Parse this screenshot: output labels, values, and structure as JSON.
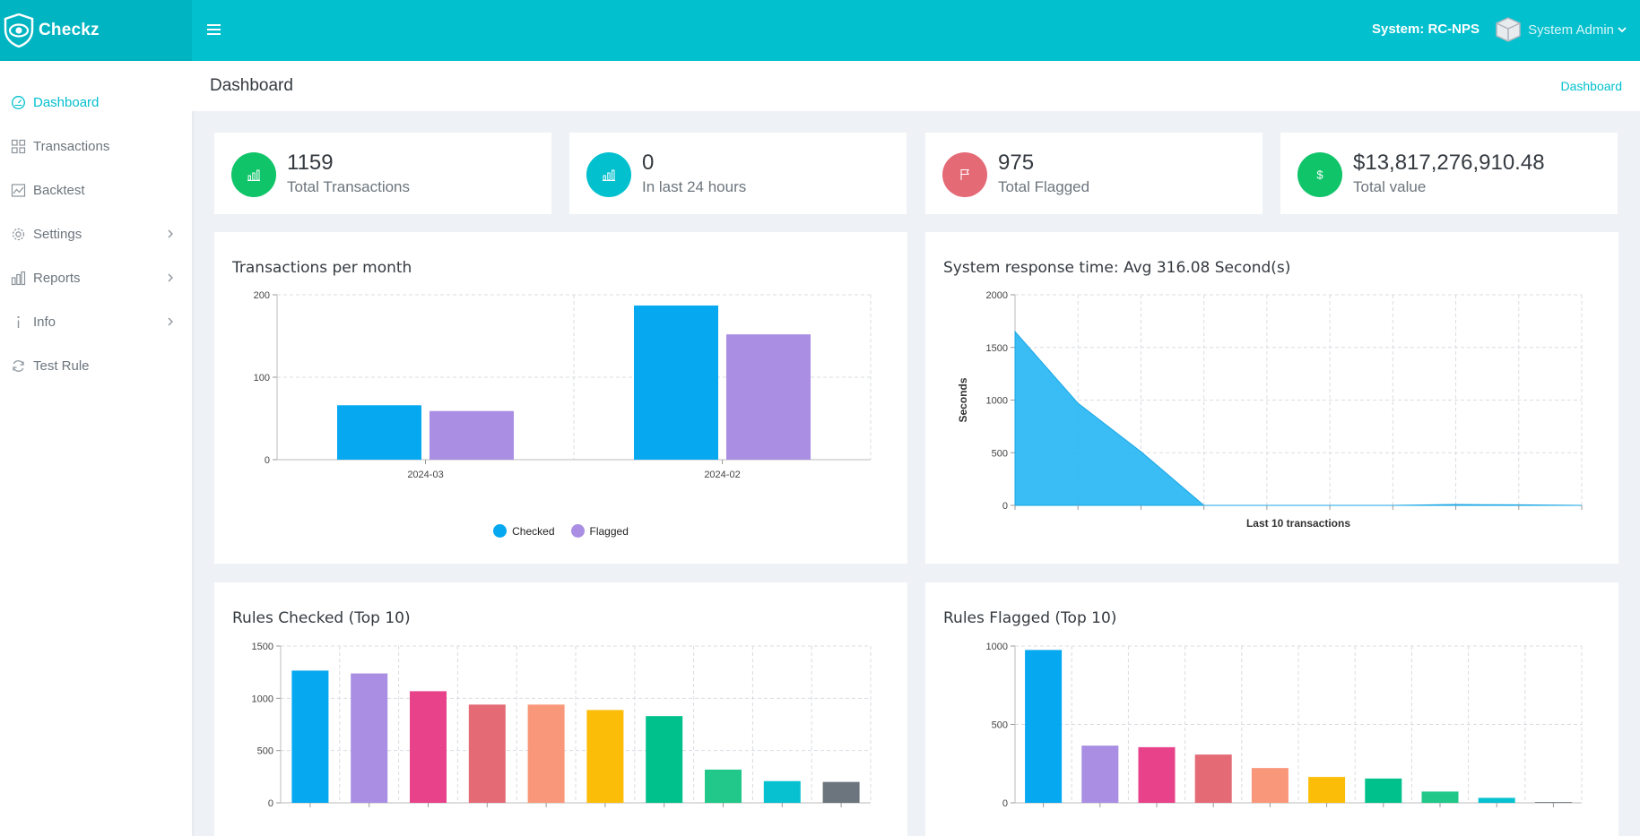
{
  "app": {
    "name": "Checkz"
  },
  "topbar": {
    "system_label": "System: RC-NPS",
    "user_name": "System Admin"
  },
  "sidebar": {
    "items": [
      {
        "label": "Dashboard",
        "icon": "gauge-icon",
        "active": true,
        "has_children": false
      },
      {
        "label": "Transactions",
        "icon": "grid-icon",
        "active": false,
        "has_children": false
      },
      {
        "label": "Backtest",
        "icon": "image-chart-icon",
        "active": false,
        "has_children": false
      },
      {
        "label": "Settings",
        "icon": "gear-icon",
        "active": false,
        "has_children": true
      },
      {
        "label": "Reports",
        "icon": "bar-chart-icon",
        "active": false,
        "has_children": true
      },
      {
        "label": "Info",
        "icon": "info-icon",
        "active": false,
        "has_children": true
      },
      {
        "label": "Test Rule",
        "icon": "refresh-icon",
        "active": false,
        "has_children": false
      }
    ]
  },
  "page": {
    "title": "Dashboard",
    "breadcrumb": "Dashboard"
  },
  "stats": [
    {
      "value": "1159",
      "label": "Total Transactions",
      "color": "#10c469",
      "icon": "bar-chart-icon"
    },
    {
      "value": "0",
      "label": "In last 24 hours",
      "color": "#02c0ce",
      "icon": "bar-chart-icon"
    },
    {
      "value": "975",
      "label": "Total Flagged",
      "color": "#e46a76",
      "icon": "flag-icon"
    },
    {
      "value": "$13,817,276,910.48",
      "label": "Total value",
      "color": "#10c469",
      "icon": "dollar-icon"
    }
  ],
  "charts": {
    "per_month_title": "Transactions per month",
    "response_title": "System response time: Avg 316.08 Second(s)",
    "rules_checked_title": "Rules Checked (Top 10)",
    "rules_flagged_title": "Rules Flagged (Top 10)"
  },
  "chart_data": [
    {
      "type": "bar",
      "title": "Transactions per month",
      "categories": [
        "2024-03",
        "2024-02"
      ],
      "series": [
        {
          "name": "Checked",
          "color": "#06a8f0",
          "values": [
            66,
            187
          ]
        },
        {
          "name": "Flagged",
          "color": "#a98ee3",
          "values": [
            59,
            152
          ]
        }
      ],
      "ylim": [
        0,
        200
      ],
      "yticks": [
        0,
        100,
        200
      ],
      "legend": "bottom",
      "grid": true
    },
    {
      "type": "area",
      "title": "System response time: Avg 316.08 Second(s)",
      "xlabel": "Last 10 transactions",
      "ylabel": "Seconds",
      "x": [
        1,
        2,
        3,
        4,
        5,
        6,
        7,
        8,
        9,
        10
      ],
      "values": [
        1650,
        970,
        510,
        0,
        0,
        0,
        0,
        8,
        5,
        0
      ],
      "color": "#1eb4f2",
      "ylim": [
        0,
        2000
      ],
      "yticks": [
        0,
        500,
        1000,
        1500,
        2000
      ],
      "grid": true
    },
    {
      "type": "bar",
      "title": "Rules Checked (Top 10)",
      "values": [
        1265,
        1238,
        1068,
        940,
        940,
        888,
        830,
        318,
        208,
        200
      ],
      "colors": [
        "#06a8f0",
        "#a98ee3",
        "#e8428a",
        "#e46a76",
        "#f9977a",
        "#fbbd08",
        "#00c18c",
        "#21c88a",
        "#08c1d0",
        "#6c757d"
      ],
      "ylim": [
        0,
        1500
      ],
      "yticks": [
        0,
        500,
        1000,
        1500
      ],
      "grid": true
    },
    {
      "type": "bar",
      "title": "Rules Flagged (Top 10)",
      "values": [
        975,
        365,
        355,
        308,
        222,
        165,
        155,
        72,
        32,
        5
      ],
      "colors": [
        "#06a8f0",
        "#a98ee3",
        "#e8428a",
        "#e46a76",
        "#f9977a",
        "#fbbd08",
        "#00c18c",
        "#21c88a",
        "#08c1d0",
        "#6c757d"
      ],
      "ylim": [
        0,
        1000
      ],
      "yticks": [
        0,
        500,
        1000
      ],
      "grid": true
    }
  ]
}
